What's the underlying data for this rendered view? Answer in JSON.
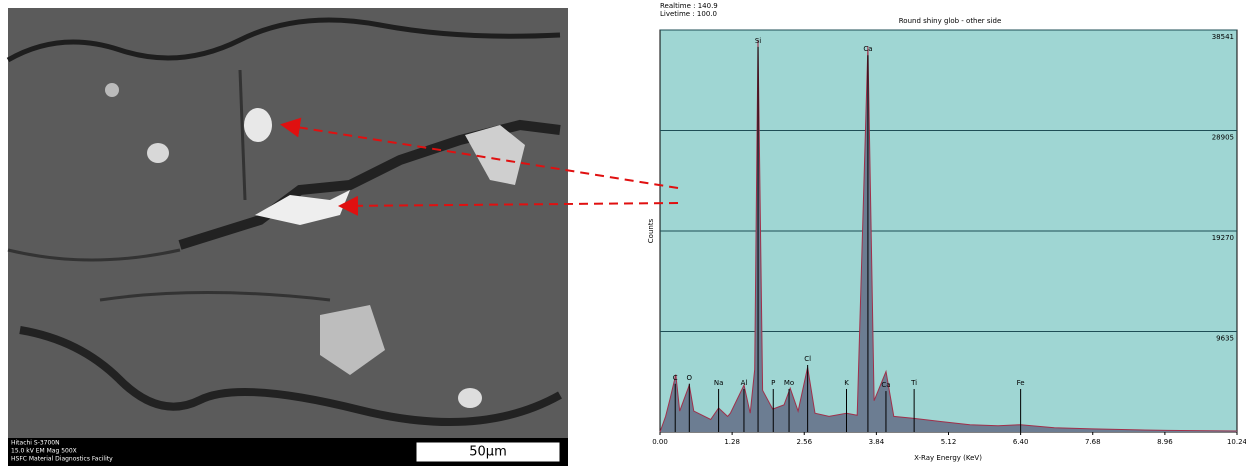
{
  "image": {
    "info": [
      "Hitachi S-3700N",
      "15.0 kV EM Mag 500X",
      "HSFC Material Diagnostics Facility"
    ],
    "scale_bar": "50µm"
  },
  "chart_data": {
    "type": "area",
    "title": "Round shiny glob - other side",
    "annotations": [
      "Realtime : 140.9",
      "Livetime : 100.0"
    ],
    "x_label": "X-Ray Energy (KeV)",
    "y_label": "Counts",
    "x": [
      0,
      0.1,
      0.18,
      0.28,
      0.35,
      0.52,
      0.6,
      0.9,
      1.04,
      1.2,
      1.25,
      1.49,
      1.6,
      1.68,
      1.74,
      1.82,
      2.0,
      2.2,
      2.31,
      2.45,
      2.62,
      2.75,
      3.0,
      3.31,
      3.5,
      3.69,
      3.8,
      4.01,
      4.15,
      4.51,
      5.0,
      5.5,
      6.0,
      6.4,
      7.0,
      7.68,
      8.5,
      9.0,
      10.24
    ],
    "values": [
      0,
      1500,
      3200,
      5500,
      2000,
      4500,
      2000,
      1200,
      2300,
      1500,
      1800,
      4500,
      1800,
      6000,
      37600,
      4000,
      2200,
      2600,
      4200,
      2000,
      6200,
      1800,
      1500,
      1800,
      1600,
      37000,
      3000,
      5800,
      1500,
      1300,
      1000,
      700,
      600,
      700,
      400,
      300,
      200,
      150,
      100
    ],
    "color": "#6c7d92",
    "edge_color": "#a0304a",
    "background": "#9fd6d3",
    "markers": [
      {
        "label": "C",
        "energy": 0.27,
        "height": 5200
      },
      {
        "label": "O",
        "energy": 0.52,
        "height": 5200
      },
      {
        "label": "Na",
        "energy": 1.04,
        "height": 4700
      },
      {
        "label": "Al",
        "energy": 1.49,
        "height": 4700
      },
      {
        "label": "Si",
        "energy": 1.74,
        "height": 37500
      },
      {
        "label": "P",
        "energy": 2.01,
        "height": 4700
      },
      {
        "label": "Mo",
        "energy": 2.29,
        "height": 4700
      },
      {
        "label": "Cl",
        "energy": 2.62,
        "height": 7000
      },
      {
        "label": "K",
        "energy": 3.31,
        "height": 4700
      },
      {
        "label": "Ca",
        "energy": 3.69,
        "height": 36700
      },
      {
        "label": "Ca",
        "energy": 4.01,
        "height": 4500
      },
      {
        "label": "Ti",
        "energy": 4.51,
        "height": 4700
      },
      {
        "label": "Fe",
        "energy": 6.4,
        "height": 4700
      }
    ],
    "xlim": [
      0,
      10.24
    ],
    "xticks": [
      {
        "value": 0,
        "label": "0.00"
      },
      1.28,
      2.56,
      3.84,
      5.12,
      {
        "value": 6.4,
        "label": "6.40"
      },
      7.68,
      8.96,
      10.24
    ],
    "ylim": [
      0,
      38541
    ],
    "yticks": [
      9635,
      19270,
      28905,
      38541
    ],
    "grid": true
  }
}
